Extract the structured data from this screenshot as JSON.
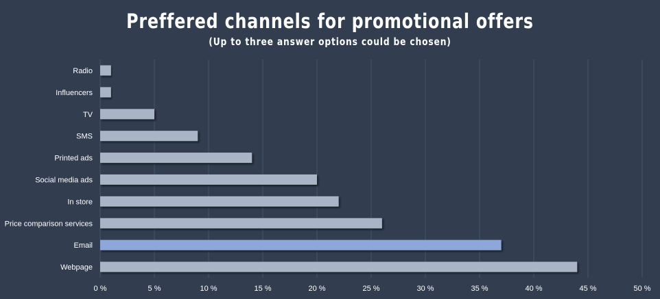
{
  "chart_data": {
    "type": "bar",
    "orientation": "horizontal",
    "title": "Preffered channels for promotional offers",
    "subtitle": "(Up to three answer options could be chosen)",
    "categories": [
      "Radio",
      "Influencers",
      "TV",
      "SMS",
      "Printed ads",
      "Social media ads",
      "In store",
      "Price comparison services",
      "Email",
      "Webpage"
    ],
    "values": [
      1,
      1,
      5,
      9,
      14,
      20,
      22,
      26,
      37,
      44
    ],
    "highlight_category": "Email",
    "xlim": [
      0,
      50
    ],
    "xticks": [
      0,
      5,
      10,
      15,
      20,
      25,
      30,
      35,
      40,
      45,
      50
    ],
    "xtick_labels": [
      "0 %",
      "5 %",
      "10 %",
      "15 %",
      "20 %",
      "25 %",
      "30 %",
      "35 %",
      "40 %",
      "45 %",
      "50 %"
    ],
    "grid": true,
    "colors": {
      "background": "#323d50",
      "bar": "#a9b4c7",
      "highlight": "#8ea7db",
      "grid": "#475266",
      "text": "#ffffff"
    }
  }
}
